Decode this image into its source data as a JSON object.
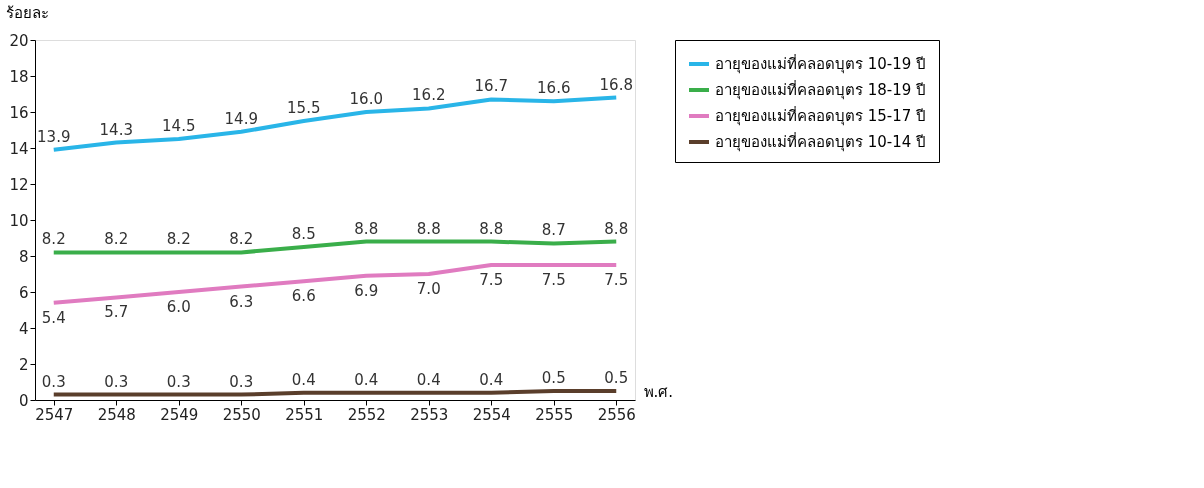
{
  "chart_data": {
    "type": "line",
    "ylabel": "ร้อยละ",
    "xlabel": "พ.ศ.",
    "categories": [
      "2547",
      "2548",
      "2549",
      "2550",
      "2551",
      "2552",
      "2553",
      "2554",
      "2555",
      "2556"
    ],
    "series": [
      {
        "name": "อายุของแม่ที่คลอดบุตร 10-19 ปี",
        "color": "#29b5e8",
        "values": [
          13.9,
          14.3,
          14.5,
          14.9,
          15.5,
          16.0,
          16.2,
          16.7,
          16.6,
          16.8
        ],
        "value_labels": [
          "13.9",
          "14.3",
          "14.5",
          "14.9",
          "15.5",
          "16.0",
          "16.2",
          "16.7",
          "16.6",
          "16.8"
        ]
      },
      {
        "name": "อายุของแม่ที่คลอดบุตร 18-19 ปี",
        "color": "#3aae4a",
        "values": [
          8.2,
          8.2,
          8.2,
          8.2,
          8.5,
          8.8,
          8.8,
          8.8,
          8.7,
          8.8
        ],
        "value_labels": [
          "8.2",
          "8.2",
          "8.2",
          "8.2",
          "8.5",
          "8.8",
          "8.8",
          "8.8",
          "8.7",
          "8.8"
        ]
      },
      {
        "name": "อายุของแม่ที่คลอดบุตร 15-17 ปี",
        "color": "#e07bc0",
        "values": [
          5.4,
          5.7,
          6.0,
          6.3,
          6.6,
          6.9,
          7.0,
          7.5,
          7.5,
          7.5
        ],
        "value_labels": [
          "5.4",
          "5.7",
          "6.0",
          "6.3",
          "6.6",
          "6.9",
          "7.0",
          "7.5",
          "7.5",
          "7.5"
        ]
      },
      {
        "name": "อายุของแม่ที่คลอดบุตร 10-14 ปี",
        "color": "#5a3e2b",
        "values": [
          0.3,
          0.3,
          0.3,
          0.3,
          0.4,
          0.4,
          0.4,
          0.4,
          0.5,
          0.5
        ],
        "value_labels": [
          "0.3",
          "0.3",
          "0.3",
          "0.3",
          "0.4",
          "0.4",
          "0.4",
          "0.4",
          "0.5",
          "0.5"
        ]
      }
    ],
    "ylim": [
      0,
      20
    ],
    "yticks": [
      0,
      2,
      4,
      6,
      8,
      10,
      12,
      14,
      16,
      18,
      20
    ],
    "legend": "right",
    "line_style": "solid"
  }
}
